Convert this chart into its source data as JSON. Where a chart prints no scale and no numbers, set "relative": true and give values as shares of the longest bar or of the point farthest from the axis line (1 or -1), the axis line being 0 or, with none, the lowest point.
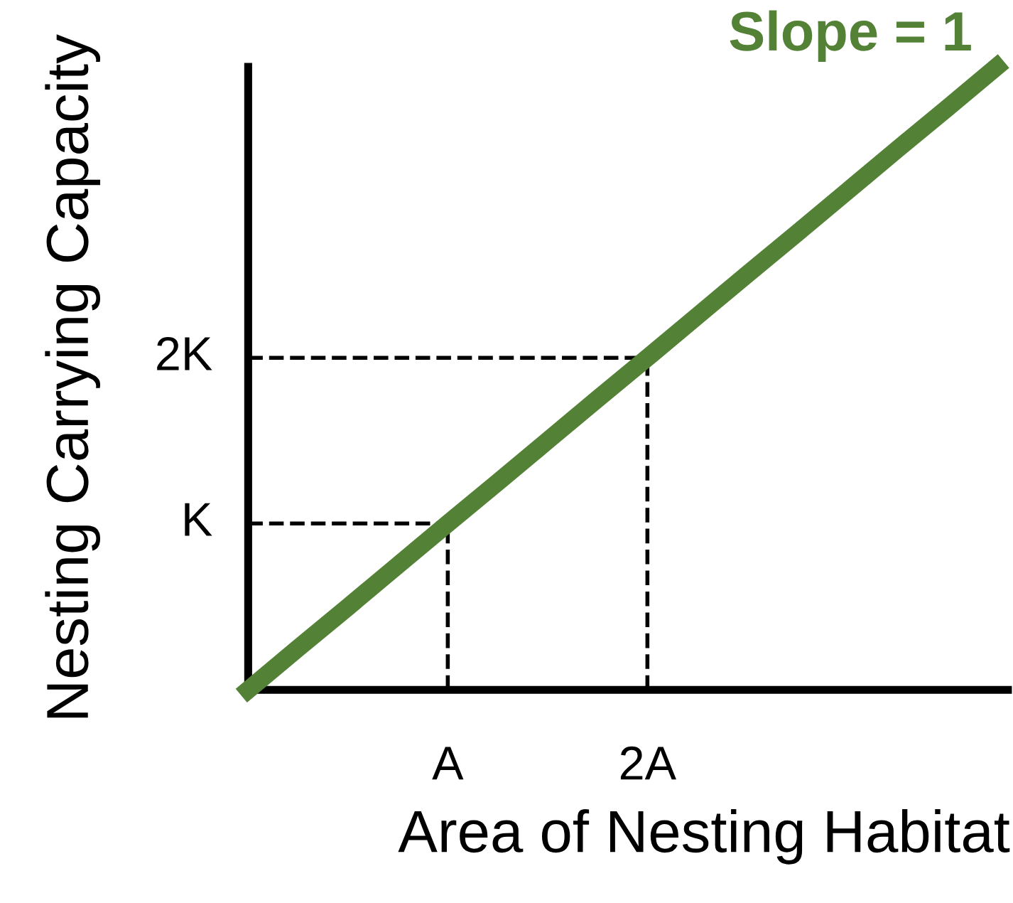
{
  "chart_data": {
    "type": "line",
    "relative": true,
    "xlabel": "Area of Nesting Habitat",
    "ylabel": "Nesting Carrying Capacity",
    "categories": [
      null,
      null,
      null,
      null,
      "A",
      null,
      null,
      null,
      "2A",
      null,
      null,
      null,
      null,
      null,
      null,
      null
    ],
    "annotations": [
      "Slope = 1",
      "K",
      "2K"
    ],
    "series": [
      {
        "values": [
          0,
          0.067,
          0.133,
          0.2,
          0.267,
          0.333,
          0.4,
          0.467,
          0.533,
          0.6,
          0.667,
          0.733,
          0.8,
          0.867,
          0.933,
          1
        ],
        "color": "#538135"
      }
    ]
  }
}
